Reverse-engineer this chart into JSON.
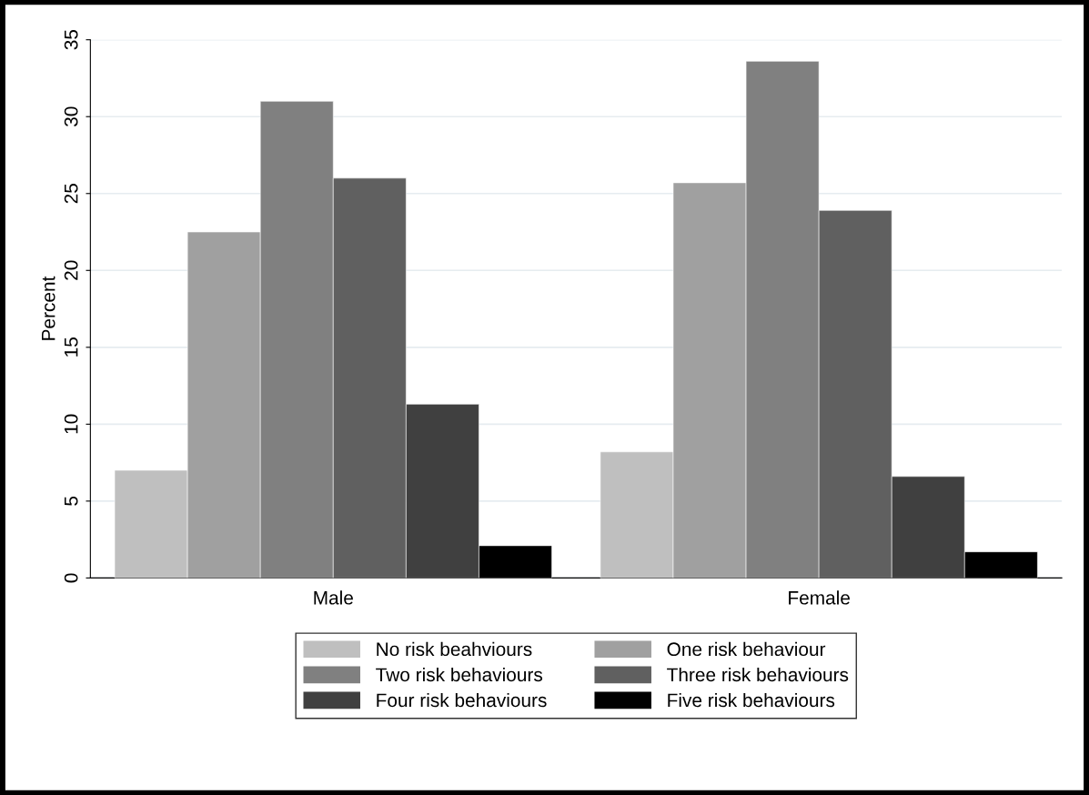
{
  "chart_data": {
    "type": "bar",
    "ylabel": "Percent",
    "categories": [
      "Male",
      "Female"
    ],
    "series": [
      {
        "name": "No risk beahviours",
        "color": "#bfbfbf",
        "values": [
          7.0,
          8.2
        ]
      },
      {
        "name": "One risk behaviour",
        "color": "#a0a0a0",
        "values": [
          22.5,
          25.7
        ]
      },
      {
        "name": "Two risk behaviours",
        "color": "#808080",
        "values": [
          31.0,
          33.6
        ]
      },
      {
        "name": "Three risk behaviours",
        "color": "#606060",
        "values": [
          26.0,
          23.9
        ]
      },
      {
        "name": "Four risk behaviours",
        "color": "#404040",
        "values": [
          11.3,
          6.6
        ]
      },
      {
        "name": "Five risk behaviours",
        "color": "#000000",
        "values": [
          2.1,
          1.7
        ]
      }
    ],
    "ylim": [
      0,
      35
    ],
    "yticks": [
      0,
      5,
      10,
      15,
      20,
      25,
      30,
      35
    ],
    "grid": "y",
    "legend": "bottom"
  }
}
